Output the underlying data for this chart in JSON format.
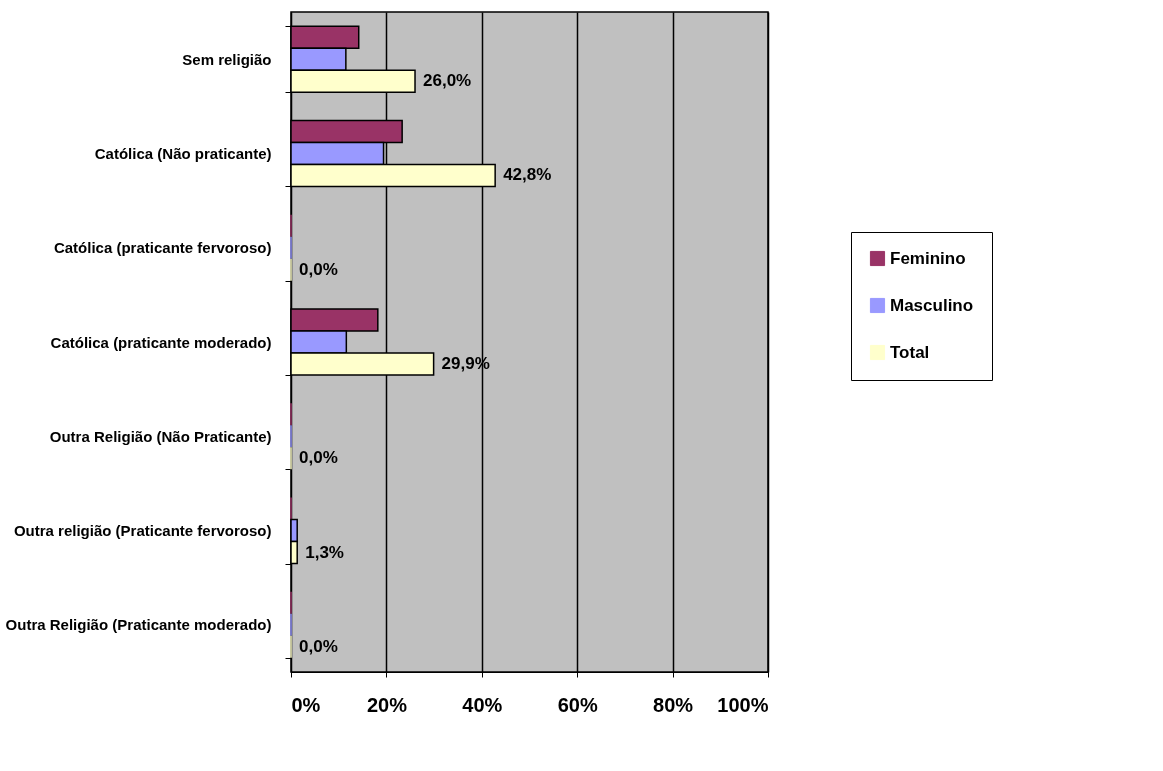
{
  "chart_data": {
    "type": "bar",
    "orientation": "horizontal",
    "categories": [
      "Sem religião",
      "Católica (Não praticante)",
      "Católica (praticante fervoroso)",
      "Católica (praticante moderado)",
      "Outra Religião (Não Praticante)",
      "Outra religião (Praticante fervoroso)",
      "Outra Religião (Praticante moderado)"
    ],
    "series": [
      {
        "name": "Feminino",
        "color": "#993366",
        "values": [
          14.2,
          23.3,
          0,
          18.2,
          0,
          0,
          0
        ]
      },
      {
        "name": "Masculino",
        "color": "#9999ff",
        "values": [
          11.5,
          19.4,
          0,
          11.6,
          0,
          1.3,
          0
        ]
      },
      {
        "name": "Total",
        "color": "#ffffcc",
        "values": [
          26.0,
          42.8,
          0,
          29.9,
          0,
          1.3,
          0
        ],
        "value_labels": [
          "26,0%",
          "42,8%",
          "0,0%",
          "29,9%",
          "0,0%",
          "1,3%",
          "0,0%"
        ]
      }
    ],
    "xlim": [
      0,
      100
    ],
    "xticks": [
      {
        "value": 0,
        "label": "0%"
      },
      {
        "value": 20,
        "label": "20%"
      },
      {
        "value": 40,
        "label": "40%"
      },
      {
        "value": 60,
        "label": "60%"
      },
      {
        "value": 80,
        "label": "80%"
      },
      {
        "value": 100,
        "label": "100%"
      }
    ],
    "grid": "x",
    "legend": "right"
  }
}
